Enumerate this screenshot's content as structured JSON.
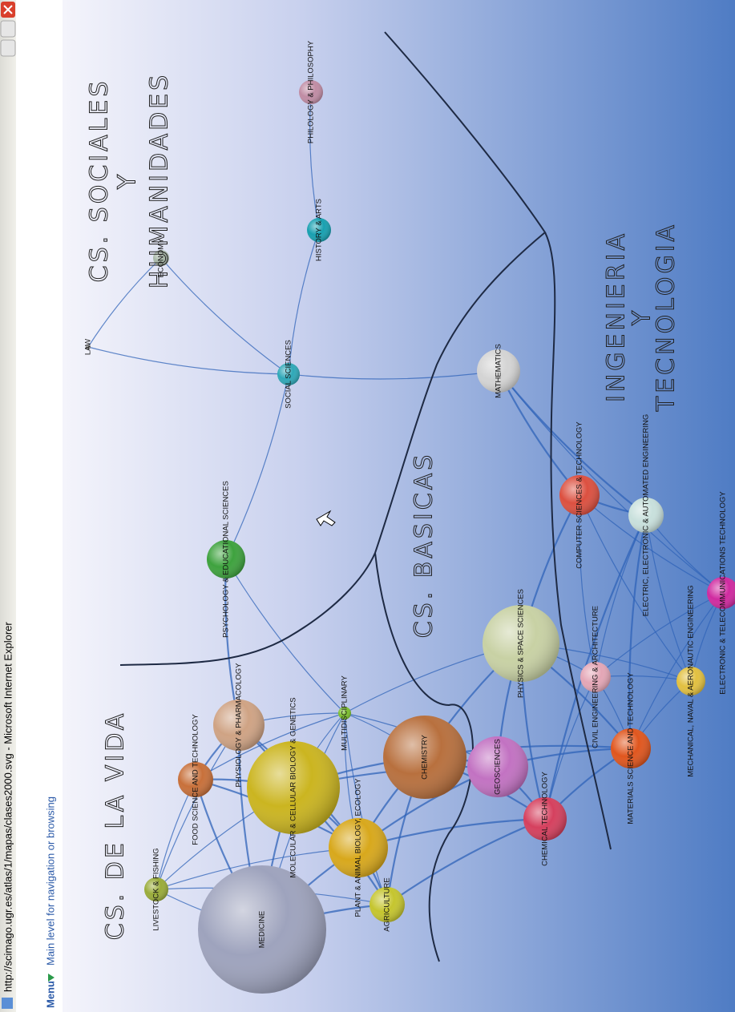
{
  "window": {
    "title": "http://scimago.ugr.es/atlas/1/mapas/clases2000.svg - Microsoft Internet Explorer"
  },
  "toolbar": {
    "menu": "Menu",
    "hint": "Main level for navigation or browsing"
  },
  "nodes": [
    {
      "label": "MEDICINE"
    },
    {
      "label": "LIVESTOCK & FISHING"
    },
    {
      "label": "FOOD SCIENCE AND TECHNOLOGY"
    },
    {
      "label": "PHYSIOLOGY & PHARMACOLOGY"
    },
    {
      "label": "MOLECULAR & CELLULAR BIOLOGY & GENETICS"
    },
    {
      "label": "PLANT & ANIMAL BIOLOGY, ECOLOGY"
    },
    {
      "label": "AGRICULTURE"
    },
    {
      "label": "MULTIDISCIPLINARY"
    },
    {
      "label": "PSYCHOLOGY & EDUCATIONAL SCIENCES"
    },
    {
      "label": "CHEMISTRY"
    },
    {
      "label": "GEOSCIENCES"
    },
    {
      "label": "CHEMICAL TECHNOLOGY"
    },
    {
      "label": "PHYSICS & SPACE SCIENCES"
    },
    {
      "label": "CIVIL ENGINEERING & ARCHITECTURE"
    },
    {
      "label": "MATERIALS SCIENCE AND TECHNOLOGY"
    },
    {
      "label": "MECHANICAL, NAVAL & AERONAUTIC ENGINEERING"
    },
    {
      "label": "ELECTRONIC & TELECOMMUNICATIONS TECHNOLOGY"
    },
    {
      "label": "ELECTRIC, ELECTRONIC & AUTOMATED ENGINEERING"
    },
    {
      "label": "COMPUTER SCIENCES & TECHNOLOGY"
    },
    {
      "label": "MATHEMATICS"
    },
    {
      "label": "SOCIAL SCIENCES"
    },
    {
      "label": "LAW"
    },
    {
      "label": "ECONOMY"
    },
    {
      "label": "HISTORY & ARTS"
    },
    {
      "label": "PHILOLOGY & PHILOSOPHY"
    }
  ],
  "annotations": [
    "CS. DE LA VIDA",
    "CS. SOCIALES",
    "Y",
    "HUMANIDADES",
    "CS. BASICAS",
    "INGENIERIA",
    "Y",
    "TECNOLOGIA"
  ]
}
